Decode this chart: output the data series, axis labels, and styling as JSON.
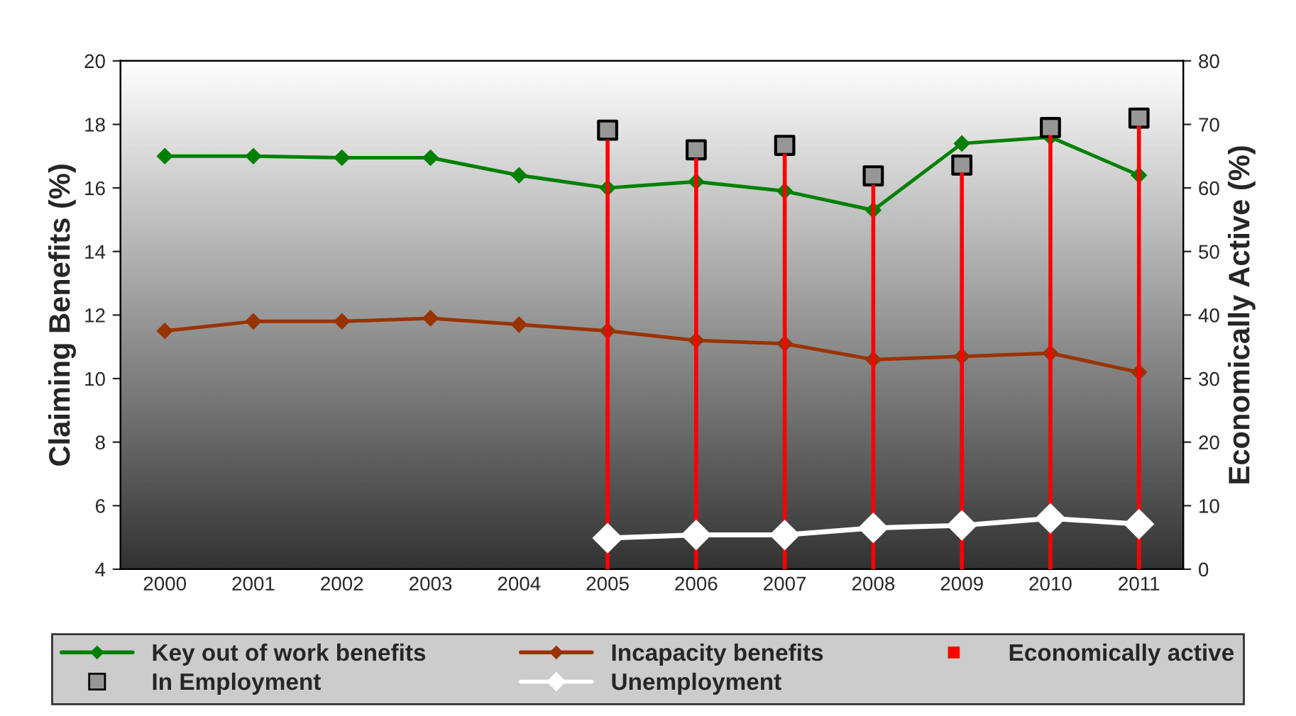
{
  "chart_data": {
    "type": "line",
    "ylabel": "Claiming Benefits (%)",
    "y2label": "Economically Active (%)",
    "categories": [
      "2000",
      "2001",
      "2002",
      "2003",
      "2004",
      "2005",
      "2006",
      "2007",
      "2008",
      "2009",
      "2010",
      "2011"
    ],
    "ylim": [
      4,
      20
    ],
    "yticks": [
      4,
      6,
      8,
      10,
      12,
      14,
      16,
      18,
      20
    ],
    "y2lim": [
      0,
      80
    ],
    "y2ticks": [
      0,
      10,
      20,
      30,
      40,
      50,
      60,
      70,
      80
    ],
    "grid": false,
    "legend": "bottom",
    "marker": "diamond",
    "series": [
      {
        "name": "Key out of work benefits",
        "color": "#008000",
        "values": [
          17.0,
          17.0,
          16.95,
          16.95,
          16.4,
          16.0,
          16.2,
          15.9,
          15.3,
          17.4,
          17.6,
          16.4
        ]
      },
      {
        "name": "Incapacity benefits",
        "color": "#993300",
        "values": [
          11.5,
          11.8,
          11.8,
          11.9,
          11.7,
          11.5,
          11.2,
          11.1,
          10.6,
          10.7,
          10.8,
          10.2
        ]
      },
      {
        "name": "Economically active",
        "type": "bar",
        "axis": "y2",
        "color": "#ff0000",
        "values": [
          null,
          null,
          null,
          null,
          null,
          67.6,
          64.7,
          65.4,
          60.5,
          62.4,
          68.3,
          69.8
        ]
      },
      {
        "name": "In Employment",
        "type": "scatter",
        "marker": "square",
        "axis": "y2",
        "color": "#969696",
        "values": [
          null,
          null,
          null,
          null,
          null,
          69.1,
          66.0,
          66.7,
          61.9,
          63.6,
          69.5,
          71.0
        ]
      },
      {
        "name": "Unemployment",
        "axis": "y2",
        "color": "#ffffff",
        "values": [
          null,
          null,
          null,
          null,
          null,
          4.9,
          5.4,
          5.4,
          6.5,
          6.9,
          8.0,
          7.1
        ]
      }
    ]
  }
}
